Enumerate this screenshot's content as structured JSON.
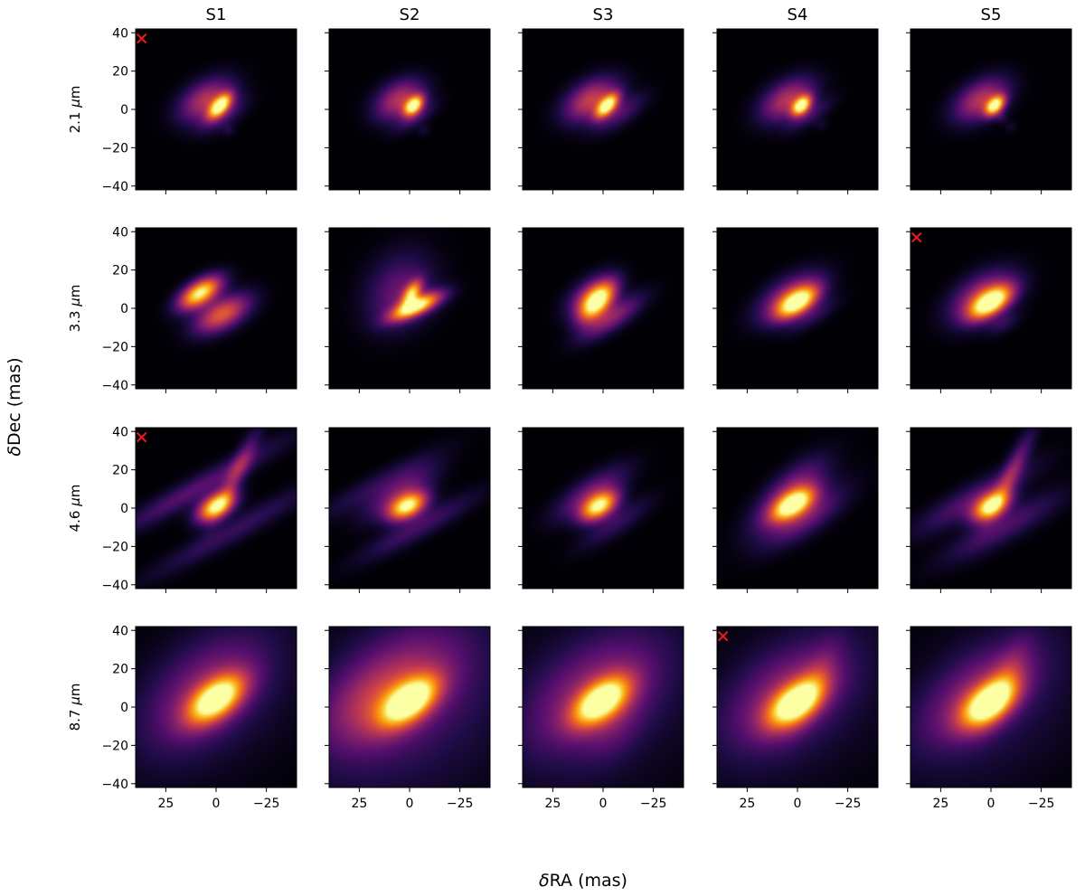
{
  "chart_data": {
    "type": "heatmap",
    "colormap": "inferno",
    "layout": {
      "rows": 4,
      "cols": 5
    },
    "columns": [
      "S1",
      "S2",
      "S3",
      "S4",
      "S5"
    ],
    "rows": [
      {
        "label_prefix": "2.1 ",
        "unit": "μm",
        "wavelength_um": 2.1
      },
      {
        "label_prefix": "3.3 ",
        "unit": "μm",
        "wavelength_um": 3.3
      },
      {
        "label_prefix": "4.6 ",
        "unit": "μm",
        "wavelength_um": 4.6
      },
      {
        "label_prefix": "8.7 ",
        "unit": "μm",
        "wavelength_um": 8.7
      }
    ],
    "xlabel_symbol": "δ",
    "xlabel_rest": "RA (mas)",
    "ylabel_symbol": "δ",
    "ylabel_rest": "Dec (mas)",
    "x_range": [
      40,
      -40
    ],
    "y_range": [
      -42,
      42
    ],
    "x_ticks": [
      25,
      0,
      -25
    ],
    "x_tick_labels": [
      "25",
      "0",
      "−25"
    ],
    "y_ticks": [
      40,
      20,
      0,
      -20,
      -40
    ],
    "y_tick_labels": [
      "40",
      "20",
      "0",
      "−20",
      "−40"
    ],
    "marker": {
      "symbol": "x",
      "color": "#e31a1c",
      "x": 37,
      "y": 37
    },
    "marked_panels": [
      {
        "row": 0,
        "col": 0
      },
      {
        "row": 1,
        "col": 4
      },
      {
        "row": 2,
        "col": 0
      },
      {
        "row": 3,
        "col": 3
      }
    ],
    "panels": [
      [
        {
          "comps": [
            [
              -2,
              2,
              5,
              2.5,
              50,
              1.0
            ],
            [
              5,
              5,
              10,
              6,
              35,
              0.45
            ],
            [
              -3,
              -3,
              9,
              4,
              35,
              0.2
            ],
            [
              -6,
              -11,
              2,
              2,
              0,
              0.08
            ]
          ]
        },
        {
          "comps": [
            [
              -2,
              2,
              4,
              2.5,
              50,
              1.0
            ],
            [
              5,
              5,
              9,
              6,
              35,
              0.45
            ],
            [
              -3,
              -4,
              8,
              3,
              35,
              0.15
            ],
            [
              -7,
              -11,
              2,
              2,
              0,
              0.07
            ]
          ]
        },
        {
          "comps": [
            [
              -2,
              2,
              5,
              2.5,
              50,
              1.0
            ],
            [
              6,
              5,
              10,
              6,
              35,
              0.5
            ],
            [
              -8,
              -2,
              10,
              4,
              35,
              0.2
            ]
          ]
        },
        {
          "comps": [
            [
              -2,
              2,
              4,
              2.5,
              50,
              1.0
            ],
            [
              5,
              5,
              10,
              6,
              35,
              0.45
            ],
            [
              -6,
              -3,
              9,
              3,
              35,
              0.15
            ],
            [
              -12,
              -8,
              2,
              2,
              0,
              0.06
            ]
          ]
        },
        {
          "comps": [
            [
              -2,
              2,
              4,
              2.5,
              50,
              1.0
            ],
            [
              5,
              5,
              10,
              6,
              35,
              0.45
            ],
            [
              -5,
              -4,
              2,
              2,
              0,
              0.1
            ],
            [
              -10,
              -9,
              2,
              2,
              0,
              0.06
            ]
          ]
        }
      ],
      [
        {
          "comps": [
            [
              8,
              8,
              8,
              4,
              35,
              1.0
            ],
            [
              -3,
              -3,
              10,
              5,
              30,
              0.6
            ]
          ]
        },
        {
          "comps": [
            [
              -3,
              1,
              9,
              3,
              25,
              1.0
            ],
            [
              -1,
              8,
              5,
              2.5,
              60,
              0.7
            ],
            [
              6,
              12,
              14,
              10,
              60,
              0.18
            ],
            [
              2,
              3,
              12,
              9,
              40,
              0.12
            ]
          ]
        },
        {
          "comps": [
            [
              3,
              3,
              8,
              4,
              50,
              1.0
            ],
            [
              -4,
              -5,
              12,
              4,
              35,
              0.35
            ],
            [
              6,
              7,
              9,
              5,
              40,
              0.4
            ]
          ]
        },
        {
          "comps": [
            [
              0,
              3,
              8,
              4,
              35,
              1.0
            ],
            [
              4,
              6,
              12,
              6,
              35,
              0.4
            ],
            [
              -8,
              -4,
              10,
              3,
              35,
              0.12
            ]
          ]
        },
        {
          "comps": [
            [
              0,
              3,
              8,
              4,
              35,
              1.0
            ],
            [
              4,
              6,
              12,
              7,
              35,
              0.45
            ],
            [
              -6,
              -8,
              6,
              3,
              30,
              0.12
            ]
          ]
        }
      ],
      [
        {
          "comps": [
            [
              0,
              1,
              7,
              4,
              35,
              1.0
            ],
            [
              -10,
              18,
              16,
              3,
              65,
              0.3
            ],
            [
              10,
              10,
              32,
              4,
              30,
              0.22
            ],
            [
              -8,
              -12,
              32,
              4,
              30,
              0.15
            ]
          ]
        },
        {
          "comps": [
            [
              1,
              1,
              7,
              4,
              30,
              1.0
            ],
            [
              5,
              8,
              14,
              5,
              35,
              0.28
            ],
            [
              -4,
              -10,
              22,
              4,
              30,
              0.18
            ],
            [
              16,
              12,
              24,
              4,
              30,
              0.12
            ]
          ]
        },
        {
          "comps": [
            [
              2,
              1,
              7,
              4,
              35,
              1.0
            ],
            [
              6,
              8,
              14,
              5,
              35,
              0.28
            ],
            [
              -6,
              -8,
              14,
              4,
              35,
              0.15
            ]
          ]
        },
        {
          "comps": [
            [
              2,
              2,
              8,
              4,
              35,
              1.0
            ],
            [
              4,
              8,
              15,
              6,
              45,
              0.35
            ],
            [
              -4,
              -6,
              15,
              5,
              35,
              0.2
            ],
            [
              0,
              -2,
              18,
              7,
              35,
              0.12
            ]
          ]
        },
        {
          "comps": [
            [
              0,
              1,
              7,
              4,
              35,
              1.0
            ],
            [
              -10,
              18,
              16,
              3,
              65,
              0.3
            ],
            [
              8,
              5,
              22,
              5,
              30,
              0.22
            ],
            [
              -6,
              -10,
              22,
              5,
              30,
              0.2
            ]
          ]
        }
      ],
      [
        {
          "comps": [
            [
              0,
              4,
              11,
              6,
              40,
              1.0
            ],
            [
              5,
              8,
              24,
              14,
              45,
              0.28
            ],
            [
              0,
              5,
              40,
              26,
              40,
              0.08
            ]
          ]
        },
        {
          "comps": [
            [
              0,
              3,
              11,
              6,
              40,
              1.0
            ],
            [
              8,
              10,
              26,
              15,
              40,
              0.32
            ],
            [
              0,
              0,
              42,
              30,
              40,
              0.15
            ],
            [
              18,
              0,
              18,
              12,
              30,
              0.12
            ]
          ]
        },
        {
          "comps": [
            [
              1,
              3,
              11,
              6,
              40,
              1.0
            ],
            [
              5,
              7,
              26,
              15,
              40,
              0.28
            ],
            [
              -6,
              -10,
              14,
              8,
              60,
              0.1
            ],
            [
              0,
              3,
              40,
              30,
              40,
              0.1
            ]
          ]
        },
        {
          "comps": [
            [
              1,
              2,
              11,
              6,
              40,
              1.0
            ],
            [
              5,
              6,
              24,
              14,
              40,
              0.3
            ],
            [
              -8,
              12,
              16,
              5,
              65,
              0.15
            ],
            [
              0,
              2,
              40,
              28,
              40,
              0.08
            ]
          ]
        },
        {
          "comps": [
            [
              1,
              2,
              11,
              6,
              40,
              1.0
            ],
            [
              6,
              7,
              24,
              12,
              40,
              0.28
            ],
            [
              -6,
              12,
              16,
              5,
              65,
              0.2
            ],
            [
              0,
              0,
              38,
              26,
              40,
              0.1
            ]
          ]
        }
      ]
    ]
  }
}
